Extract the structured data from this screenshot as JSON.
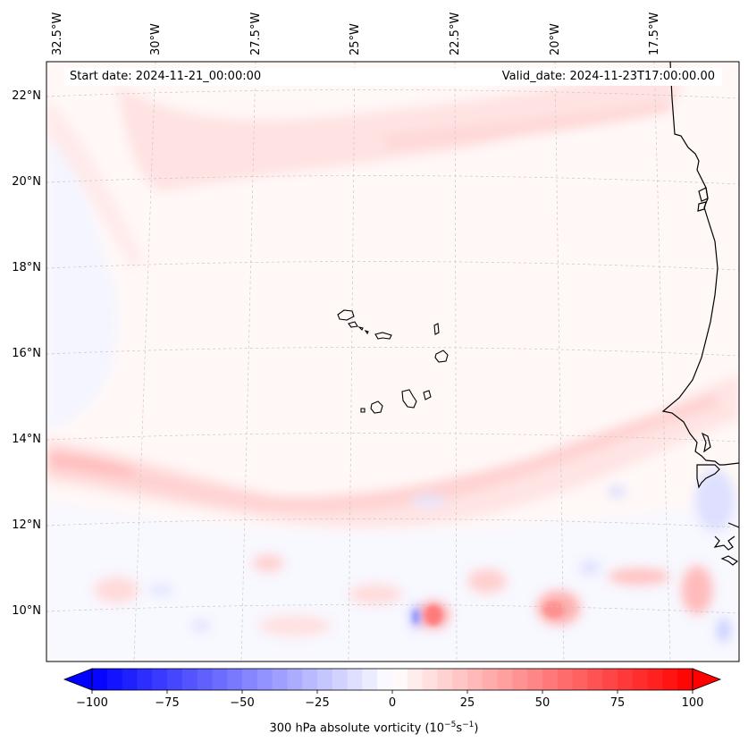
{
  "header": {
    "start_date": "Start date: 2024-11-21_00:00:00",
    "valid_date": "Valid_date: 2024-11-23T17:00:00.00"
  },
  "map": {
    "longitude_labels": [
      "32.5°W",
      "30°W",
      "27.5°W",
      "25°W",
      "22.5°W",
      "20°W",
      "17.5°W"
    ],
    "latitude_labels": [
      "22°N",
      "20°N",
      "18°N",
      "16°N",
      "14°N",
      "12°N",
      "10°N"
    ]
  },
  "colorbar": {
    "variable": "300 hPa absolute vorticity",
    "unit_prefix": "(10",
    "unit_exp1": "−5",
    "unit_mid": "s",
    "unit_exp2": "−1",
    "unit_suffix": ")",
    "range": [
      -100,
      100
    ],
    "ticks": [
      "−100",
      "−75",
      "−50",
      "−25",
      "0",
      "25",
      "50",
      "75",
      "100"
    ],
    "negative_color": "#0000ff",
    "zero_color": "#ffffff",
    "positive_color": "#ff0000"
  }
}
